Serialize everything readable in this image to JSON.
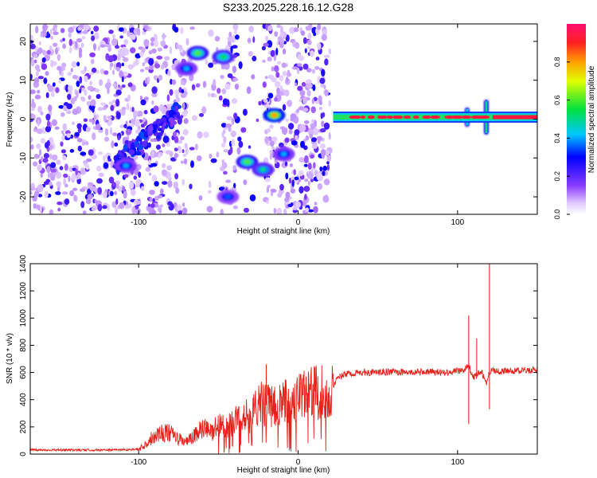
{
  "title": "S233.2025.228.16.12.G28",
  "colors": {
    "snr_line": "#e8201a",
    "track": "#ff1744",
    "scatter_light": "#c8a8ff",
    "scatter_dark": "#5a1fd6"
  },
  "chart_data": [
    {
      "type": "heatmap",
      "xlabel": "Height of straight line (km)",
      "ylabel": "Frequency (Hz)",
      "xlim": [
        -168,
        150
      ],
      "ylim": [
        -24.5,
        24.5
      ],
      "xticks": [
        -100,
        0,
        100
      ],
      "yticks": [
        -20,
        -10,
        0,
        10,
        20
      ],
      "grid": false,
      "colorbar": {
        "label": "Normalized spectral amplitude",
        "range": [
          0,
          1
        ],
        "ticks": [
          0.0,
          0.2,
          0.4,
          0.6,
          0.8
        ]
      },
      "features": [
        {
          "kind": "scatter",
          "x": [
            -168,
            20
          ],
          "freq": [
            -24,
            24
          ],
          "amplitude": 0.15
        },
        {
          "kind": "blob",
          "x": -47,
          "freq": 16,
          "amplitude": 0.55
        },
        {
          "kind": "blob",
          "x": -63,
          "freq": 17,
          "amplitude": 0.6
        },
        {
          "kind": "blob",
          "x": -70,
          "freq": 13,
          "amplitude": 0.4
        },
        {
          "kind": "blob",
          "x": -32,
          "freq": -11,
          "amplitude": 0.6
        },
        {
          "kind": "blob",
          "x": -22,
          "freq": -13,
          "amplitude": 0.5
        },
        {
          "kind": "blob",
          "x": -15,
          "freq": 1,
          "amplitude": 0.8
        },
        {
          "kind": "blob",
          "x": -9,
          "freq": -9,
          "amplitude": 0.4
        },
        {
          "kind": "blob",
          "x": -44,
          "freq": -20,
          "amplitude": 0.35
        },
        {
          "kind": "blob",
          "x": -108,
          "freq": -12,
          "amplitude": 0.4
        },
        {
          "kind": "track",
          "x": [
            22,
            150
          ],
          "freq": 0.5,
          "amplitude": 0.95
        },
        {
          "kind": "spike",
          "x": 118,
          "freq": [
            -4,
            5
          ],
          "amplitude": 0.5
        },
        {
          "kind": "spike",
          "x": 106,
          "freq": [
            -2,
            3
          ],
          "amplitude": 0.45
        }
      ]
    },
    {
      "type": "line",
      "xlabel": "Height of straight line (km)",
      "ylabel": "SNR (10 * v/v)",
      "xlim": [
        -168,
        150
      ],
      "ylim": [
        0,
        1400
      ],
      "xticks": [
        -100,
        0,
        100
      ],
      "yticks": [
        0,
        200,
        400,
        600,
        800,
        1000,
        1200,
        1400
      ],
      "grid": false,
      "series": [
        {
          "x": [
            -168,
            -150,
            -120,
            -100,
            -95,
            -90,
            -85,
            -80,
            -75,
            -70,
            -65,
            -60,
            -55,
            -50,
            -45,
            -40,
            -35,
            -30,
            -25,
            -20,
            -15,
            -10,
            -5,
            0,
            5,
            10,
            15,
            18,
            20,
            25,
            30,
            40,
            50,
            60,
            70,
            80,
            90,
            100,
            104,
            107,
            110,
            115,
            118,
            120,
            122,
            125,
            130,
            140,
            150
          ],
          "values": [
            30,
            30,
            30,
            35,
            80,
            140,
            160,
            150,
            110,
            90,
            130,
            190,
            160,
            220,
            200,
            230,
            300,
            270,
            380,
            360,
            340,
            380,
            390,
            420,
            430,
            450,
            460,
            470,
            470,
            560,
            590,
            600,
            600,
            605,
            600,
            605,
            600,
            610,
            620,
            650,
            560,
            610,
            520,
            600,
            620,
            610,
            610,
            615,
            620
          ]
        }
      ],
      "peaks": [
        {
          "x": 107,
          "value": 1020
        },
        {
          "x": 112,
          "value": 850
        },
        {
          "x": 120,
          "value": 1400
        },
        {
          "x": 107,
          "value": 220
        },
        {
          "x": 120,
          "value": 330
        },
        {
          "x": -20,
          "value": 660
        },
        {
          "x": 5,
          "value": 570
        }
      ]
    }
  ]
}
